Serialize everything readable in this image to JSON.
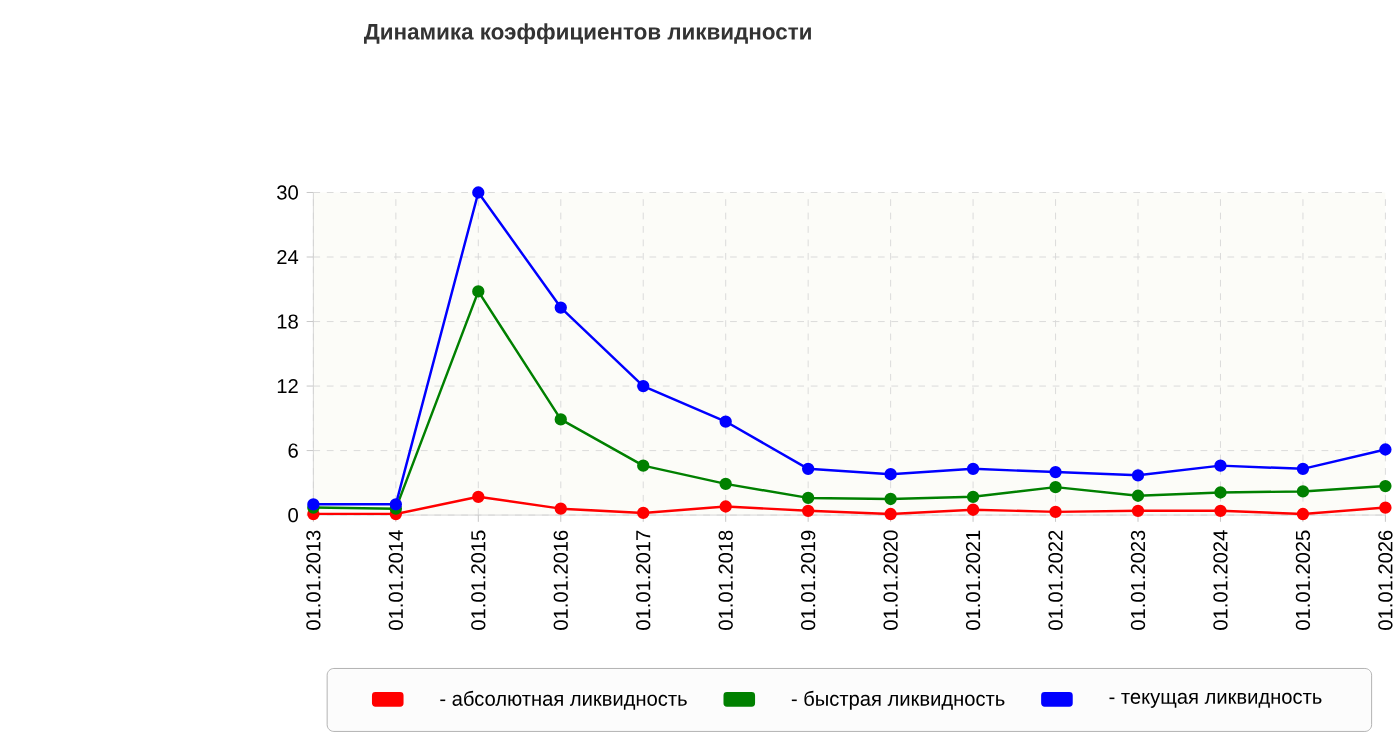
{
  "chart_data": {
    "type": "line",
    "title": "Динамика коэффициентов ликвидности",
    "categories": [
      "01.01.2013",
      "01.01.2014",
      "01.01.2015",
      "01.01.2016",
      "01.01.2017",
      "01.01.2018",
      "01.01.2019",
      "01.01.2020",
      "01.01.2021",
      "01.01.2022",
      "01.01.2023",
      "01.01.2024",
      "01.01.2025",
      "01.01.2026"
    ],
    "series": [
      {
        "name": "- абсолютная ликвидность",
        "color": "#ff0000",
        "values": [
          0.1,
          0.1,
          1.7,
          0.6,
          0.2,
          0.8,
          0.4,
          0.1,
          0.5,
          0.3,
          0.4,
          0.4,
          0.1,
          0.7
        ]
      },
      {
        "name": "- быстрая ликвидность",
        "color": "#008000",
        "values": [
          0.7,
          0.6,
          20.8,
          8.9,
          4.6,
          2.9,
          1.6,
          1.5,
          1.7,
          2.6,
          1.8,
          2.1,
          2.2,
          2.7
        ]
      },
      {
        "name": "- текущая ликвидность",
        "color": "#0000ff",
        "values": [
          1.0,
          1.0,
          30,
          19.3,
          12.0,
          8.7,
          4.3,
          3.8,
          4.3,
          4.0,
          3.7,
          4.6,
          4.3,
          6.1
        ]
      }
    ],
    "ylim": [
      0,
      30
    ],
    "yticks": [
      0,
      6,
      12,
      18,
      24,
      30
    ],
    "grid": true,
    "legend": "bottom",
    "marker": "circle",
    "line_style": "solid"
  }
}
